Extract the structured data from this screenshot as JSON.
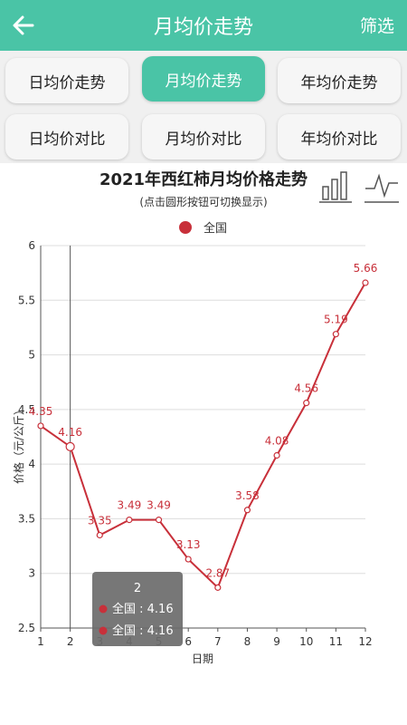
{
  "header": {
    "title": "月均价走势",
    "filter_label": "筛选"
  },
  "tabs": [
    {
      "label": "日均价走势",
      "active": false
    },
    {
      "label": "月均价走势",
      "active": true
    },
    {
      "label": "年均价走势",
      "active": false
    },
    {
      "label": "日均价对比",
      "active": false
    },
    {
      "label": "月均价对比",
      "active": false
    },
    {
      "label": "年均价对比",
      "active": false
    }
  ],
  "chart_toolbar": {
    "bar_icon": "bar-chart-icon",
    "line_icon": "line-chart-icon"
  },
  "colors": {
    "accent": "#4ac4a6",
    "series": "#c8303a",
    "tooltip_bg": "#6b6b6b"
  },
  "chart_data": {
    "type": "line",
    "title": "2021年西红柿月均价格走势",
    "subtitle": "(点击圆形按钮可切换显示)",
    "xlabel": "日期",
    "ylabel": "价格（元/公斤）",
    "ylim": [
      2.5,
      6
    ],
    "yticks": [
      "2.5",
      "3",
      "3.5",
      "4",
      "4.5",
      "5",
      "5.5",
      "6"
    ],
    "categories": [
      "1",
      "2",
      "3",
      "4",
      "5",
      "6",
      "7",
      "8",
      "9",
      "10",
      "11",
      "12"
    ],
    "series": [
      {
        "name": "全国",
        "values": [
          4.35,
          4.16,
          3.35,
          3.49,
          3.49,
          3.13,
          2.87,
          3.58,
          4.08,
          4.56,
          5.19,
          5.66
        ]
      }
    ],
    "data_labels": [
      "4.35",
      "4.16",
      "3.35",
      "3.49",
      "3.49",
      "3.13",
      "2.87",
      "3.58",
      "4.08",
      "4.56",
      "5.19",
      "5.66"
    ],
    "legend_position": "top-center",
    "grid": true,
    "tooltip": {
      "title": "2",
      "lines": [
        "全国 : 4.16",
        "全国 : 4.16"
      ]
    }
  }
}
